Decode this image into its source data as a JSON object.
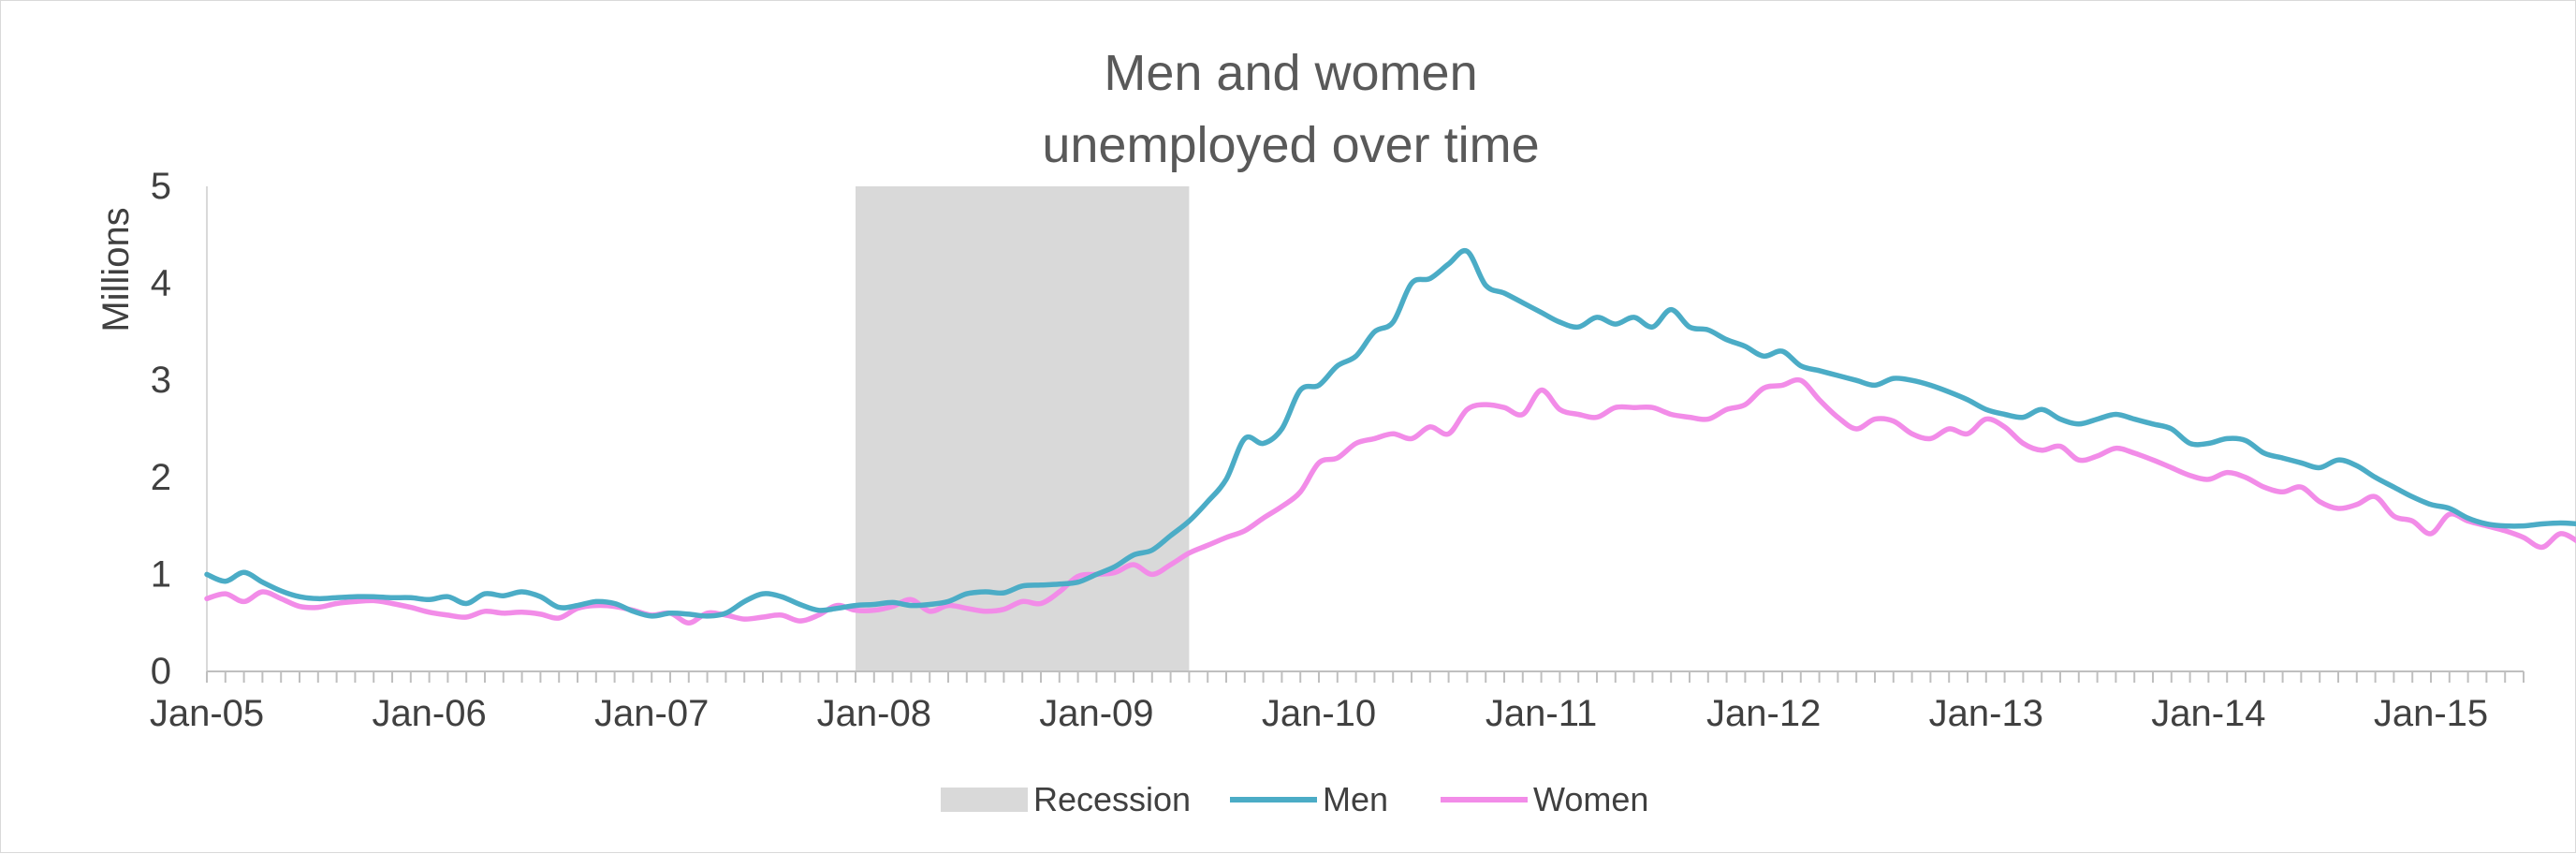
{
  "chart_data": {
    "type": "line",
    "title_lines": [
      "Men and women",
      "unemployed over time"
    ],
    "xlabel": "",
    "ylabel": "Millions",
    "x_start": "2005-01",
    "x_end": "2015-06",
    "x_ticks": [
      "Jan-05",
      "Jan-06",
      "Jan-07",
      "Jan-08",
      "Jan-09",
      "Jan-10",
      "Jan-11",
      "Jan-12",
      "Jan-13",
      "Jan-14",
      "Jan-15"
    ],
    "ylim": [
      0,
      5
    ],
    "y_ticks": [
      0,
      1,
      2,
      3,
      4,
      5
    ],
    "grid": false,
    "legend_position": "bottom",
    "recession": {
      "name": "Recession",
      "start": "2007-12",
      "end": "2009-06",
      "color": "#d9d9d9"
    },
    "series": [
      {
        "name": "Men",
        "color": "#4bacc6",
        "values": [
          1.0,
          0.93,
          1.02,
          0.92,
          0.83,
          0.77,
          0.75,
          0.76,
          0.77,
          0.77,
          0.76,
          0.76,
          0.74,
          0.77,
          0.7,
          0.8,
          0.78,
          0.82,
          0.77,
          0.66,
          0.68,
          0.72,
          0.7,
          0.62,
          0.57,
          0.6,
          0.59,
          0.57,
          0.6,
          0.72,
          0.8,
          0.77,
          0.69,
          0.63,
          0.65,
          0.68,
          0.69,
          0.71,
          0.68,
          0.69,
          0.72,
          0.8,
          0.82,
          0.81,
          0.88,
          0.89,
          0.9,
          0.92,
          1.0,
          1.08,
          1.2,
          1.25,
          1.4,
          1.55,
          1.75,
          1.98,
          2.4,
          2.35,
          2.5,
          2.9,
          2.95,
          3.15,
          3.25,
          3.5,
          3.6,
          4.0,
          4.05,
          4.2,
          4.33,
          3.98,
          3.9,
          3.8,
          3.7,
          3.6,
          3.55,
          3.65,
          3.58,
          3.65,
          3.55,
          3.73,
          3.55,
          3.52,
          3.42,
          3.35,
          3.25,
          3.3,
          3.15,
          3.1,
          3.05,
          3.0,
          2.95,
          3.02,
          3.0,
          2.95,
          2.88,
          2.8,
          2.7,
          2.65,
          2.62,
          2.7,
          2.6,
          2.55,
          2.6,
          2.65,
          2.6,
          2.55,
          2.5,
          2.35,
          2.35,
          2.4,
          2.38,
          2.25,
          2.2,
          2.15,
          2.1,
          2.18,
          2.12,
          2.0,
          1.9,
          1.8,
          1.72,
          1.68,
          1.58,
          1.52,
          1.5,
          1.5,
          1.52,
          1.53,
          1.52
        ]
      },
      {
        "name": "Women",
        "color": "#f28ce8",
        "values": [
          0.75,
          0.8,
          0.72,
          0.82,
          0.75,
          0.67,
          0.66,
          0.7,
          0.72,
          0.73,
          0.7,
          0.66,
          0.61,
          0.58,
          0.56,
          0.62,
          0.6,
          0.61,
          0.59,
          0.55,
          0.65,
          0.68,
          0.67,
          0.63,
          0.58,
          0.6,
          0.5,
          0.6,
          0.58,
          0.54,
          0.56,
          0.58,
          0.52,
          0.58,
          0.68,
          0.63,
          0.63,
          0.67,
          0.74,
          0.62,
          0.68,
          0.65,
          0.62,
          0.64,
          0.72,
          0.7,
          0.82,
          0.98,
          1.0,
          1.02,
          1.1,
          1.0,
          1.1,
          1.22,
          1.3,
          1.38,
          1.45,
          1.58,
          1.7,
          1.85,
          2.15,
          2.2,
          2.35,
          2.4,
          2.45,
          2.4,
          2.52,
          2.45,
          2.7,
          2.75,
          2.72,
          2.65,
          2.9,
          2.7,
          2.65,
          2.62,
          2.72,
          2.72,
          2.72,
          2.65,
          2.62,
          2.6,
          2.7,
          2.75,
          2.92,
          2.95,
          3.0,
          2.8,
          2.62,
          2.5,
          2.6,
          2.58,
          2.45,
          2.4,
          2.5,
          2.45,
          2.6,
          2.52,
          2.35,
          2.28,
          2.32,
          2.18,
          2.22,
          2.3,
          2.25,
          2.18,
          2.1,
          2.02,
          1.98,
          2.05,
          2.0,
          1.9,
          1.85,
          1.9,
          1.75,
          1.68,
          1.72,
          1.8,
          1.6,
          1.55,
          1.42,
          1.62,
          1.55,
          1.5,
          1.45,
          1.38,
          1.28,
          1.42,
          1.33
        ]
      }
    ]
  }
}
